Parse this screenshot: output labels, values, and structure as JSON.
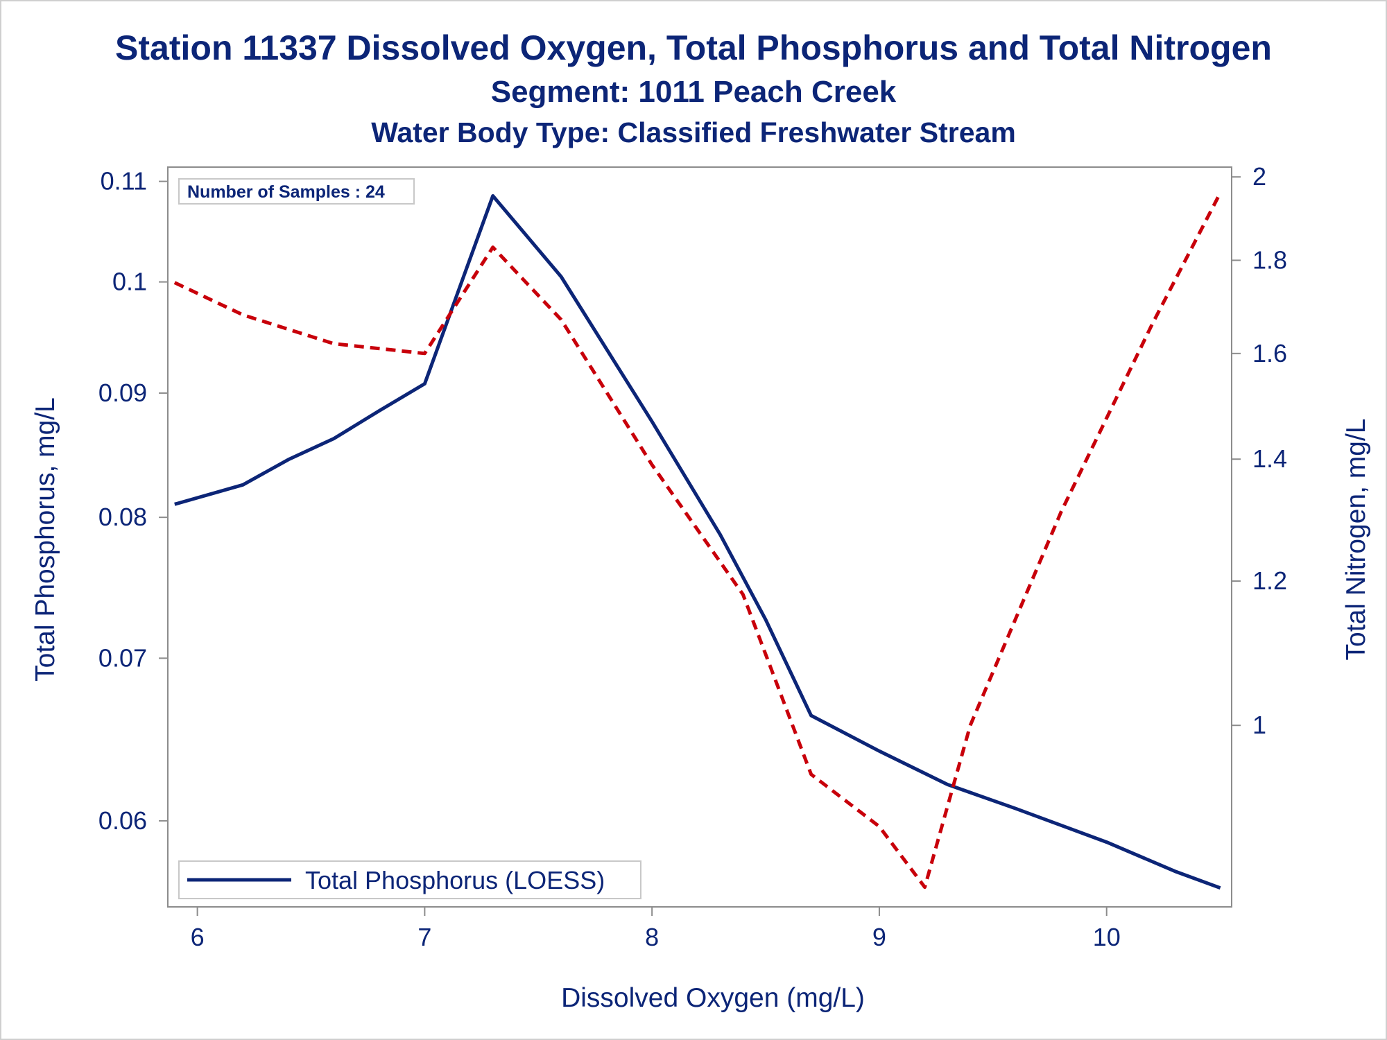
{
  "header": {
    "title": "Station 11337  Dissolved Oxygen, Total Phosphorus and Total Nitrogen",
    "subtitle1": "Segment: 1011  Peach Creek",
    "subtitle2": "Water Body Type: Classified Freshwater Stream"
  },
  "chart_data": {
    "type": "line",
    "title": "Station 11337  Dissolved Oxygen, Total Phosphorus and Total Nitrogen",
    "xlabel": "Dissolved Oxygen (mg/L)",
    "ylabel_left": "Total Phosphorus, mg/L",
    "ylabel_right": "Total Nitrogen, mg/L",
    "inset_label": "Number of Samples : 24",
    "legend_position": "bottom-left",
    "xlim": [
      5.87,
      10.55
    ],
    "ylim_left": [
      0.0553,
      0.1115
    ],
    "ylim_right": [
      0.795,
      2.025
    ],
    "y_left_scale": "log",
    "y_right_scale": "log",
    "x_ticks": [
      "6",
      "7",
      "8",
      "9",
      "10"
    ],
    "y_left_ticks": [
      "0.06",
      "0.07",
      "0.08",
      "0.09",
      "0.1",
      "0.11"
    ],
    "y_right_ticks": [
      "1",
      "1.2",
      "1.4",
      "1.6",
      "1.8",
      "2"
    ],
    "colors": {
      "phosphorus": "#0c2577",
      "nitrogen": "#c8000a",
      "axis": "#8c8c8c",
      "text": "#0c2577"
    },
    "series": [
      {
        "name": "Total Phosphorus (LOESS)",
        "axis": "left",
        "style": "solid",
        "x": [
          5.9,
          6.2,
          6.4,
          6.6,
          6.8,
          7.0,
          7.3,
          7.6,
          8.0,
          8.3,
          8.5,
          8.7,
          9.0,
          9.3,
          9.6,
          10.0,
          10.3,
          10.5
        ],
        "y": [
          0.081,
          0.0825,
          0.0845,
          0.0862,
          0.0885,
          0.0908,
          0.1085,
          0.1005,
          0.0876,
          0.0787,
          0.0726,
          0.0663,
          0.0641,
          0.0621,
          0.0607,
          0.0588,
          0.0572,
          0.0563
        ]
      },
      {
        "name": "",
        "axis": "right",
        "style": "dashed",
        "x": [
          5.9,
          6.2,
          6.6,
          7.0,
          7.3,
          7.6,
          8.0,
          8.4,
          8.7,
          9.0,
          9.2,
          9.4,
          9.8,
          10.2,
          10.5
        ],
        "y": [
          1.75,
          1.68,
          1.62,
          1.6,
          1.83,
          1.67,
          1.39,
          1.18,
          0.94,
          0.88,
          0.815,
          1.0,
          1.31,
          1.66,
          1.96
        ]
      }
    ]
  },
  "legend": {
    "label": "Total Phosphorus (LOESS)"
  },
  "inset": {
    "label": "Number of Samples : 24"
  }
}
